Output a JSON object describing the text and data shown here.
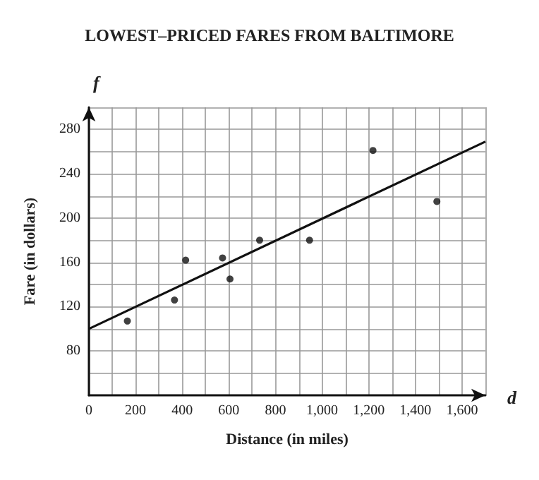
{
  "chart_data": {
    "type": "scatter",
    "title": "LOWEST–PRICED FARES FROM BALTIMORE",
    "xlabel": "Distance (in miles)",
    "ylabel": "Fare (in dollars)",
    "annotations": [
      "f",
      "d"
    ],
    "xlim": [
      0,
      1700
    ],
    "ylim": [
      40,
      300
    ],
    "xticks": [
      0,
      {
        "value": 100,
        "label": null
      },
      200,
      {
        "value": 300,
        "label": null
      },
      400,
      {
        "value": 500,
        "label": null
      },
      600,
      {
        "value": 700,
        "label": null
      },
      800,
      {
        "value": 900,
        "label": null
      },
      {
        "value": 1000,
        "label": "1,000"
      },
      {
        "value": 1100,
        "label": null
      },
      {
        "value": 1200,
        "label": "1,200"
      },
      {
        "value": 1300,
        "label": null
      },
      {
        "value": 1400,
        "label": "1,400"
      },
      {
        "value": 1500,
        "label": null
      },
      {
        "value": 1600,
        "label": "1,600"
      },
      {
        "value": 1700,
        "label": null
      }
    ],
    "yticks": [
      {
        "value": 60,
        "label": null
      },
      80,
      {
        "value": 100,
        "label": null
      },
      120,
      {
        "value": 140,
        "label": null
      },
      160,
      {
        "value": 180,
        "label": null
      },
      200,
      {
        "value": 220,
        "label": null
      },
      240,
      {
        "value": 260,
        "label": null
      },
      280,
      {
        "value": 300,
        "label": null
      }
    ],
    "grid": true,
    "marker": "circle",
    "series": [
      {
        "color": "#111111",
        "x": [
          165,
          367,
          415,
          573,
          605,
          732,
          946,
          1218,
          1492
        ],
        "values": [
          107,
          126,
          162,
          164,
          145,
          180,
          180,
          261,
          215
        ]
      },
      {
        "type": "line",
        "color": "#111111",
        "x": [
          0,
          1700
        ],
        "values": [
          100,
          269
        ],
        "marker": "none",
        "line_style": "solid"
      }
    ]
  }
}
